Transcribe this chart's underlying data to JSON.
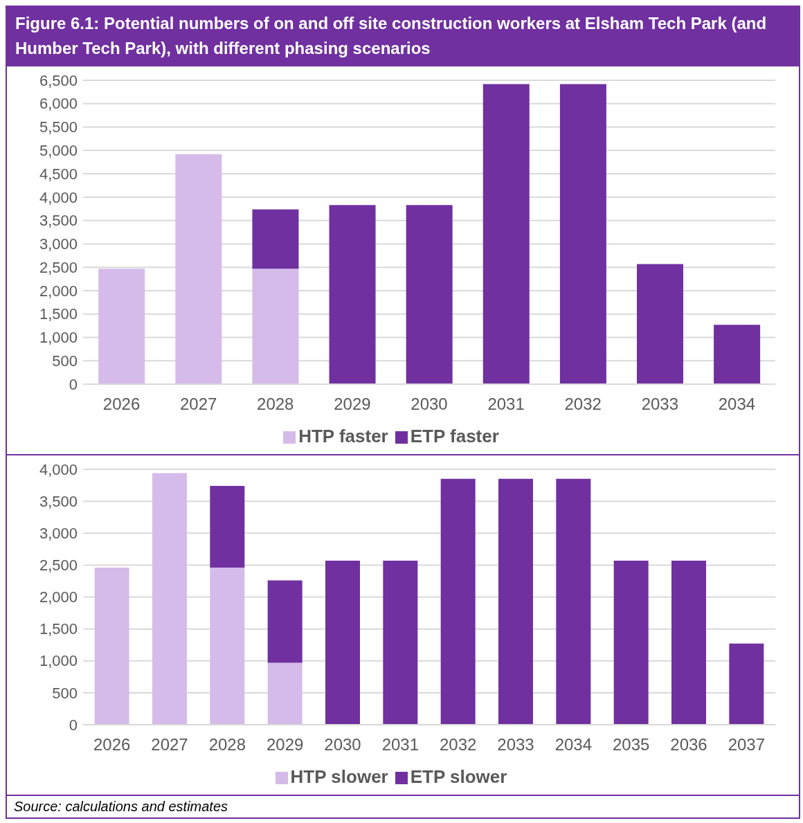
{
  "chart_data": [
    {
      "type": "bar",
      "title": "Figure 6.1: Potential numbers of on and off site construction workers at Elsham Tech Park (and Humber Tech Park), with different phasing scenarios",
      "categories": [
        "2026",
        "2027",
        "2028",
        "2029",
        "2030",
        "2031",
        "2032",
        "2033",
        "2034"
      ],
      "stacked": true,
      "ylim": [
        0,
        6500
      ],
      "yticks": [
        {
          "value": 0,
          "label": "0"
        },
        {
          "value": 500,
          "label": "500"
        },
        {
          "value": 1000,
          "label": "1,000"
        },
        {
          "value": 1500,
          "label": "1,500"
        },
        {
          "value": 2000,
          "label": "2,000"
        },
        {
          "value": 2500,
          "label": "2,500"
        },
        {
          "value": 3000,
          "label": "3,000"
        },
        {
          "value": 3500,
          "label": "3,500"
        },
        {
          "value": 4000,
          "label": "4,000"
        },
        {
          "value": 4500,
          "label": "4,500"
        },
        {
          "value": 5000,
          "label": "5,000"
        },
        {
          "value": 5500,
          "label": "5,500"
        },
        {
          "value": 6000,
          "label": "6,000"
        },
        {
          "value": 6500,
          "label": "6,500"
        }
      ],
      "grid": "y",
      "legend": "bottom",
      "series": [
        {
          "name": "HTP faster",
          "color": "#d5bbea",
          "values": [
            2470,
            4920,
            2470,
            null,
            null,
            null,
            null,
            null,
            null
          ]
        },
        {
          "name": "ETP faster",
          "color": "#7030a0",
          "values": [
            null,
            null,
            1270,
            3830,
            3830,
            6420,
            6420,
            2570,
            1270
          ]
        }
      ]
    },
    {
      "type": "bar",
      "categories": [
        "2026",
        "2027",
        "2028",
        "2029",
        "2030",
        "2031",
        "2032",
        "2033",
        "2034",
        "2035",
        "2036",
        "2037"
      ],
      "stacked": true,
      "ylim": [
        0,
        4000
      ],
      "yticks": [
        {
          "value": 0,
          "label": "0"
        },
        {
          "value": 500,
          "label": "500"
        },
        {
          "value": 1000,
          "label": "1,000"
        },
        {
          "value": 1500,
          "label": "1,500"
        },
        {
          "value": 2000,
          "label": "2,000"
        },
        {
          "value": 2500,
          "label": "2,500"
        },
        {
          "value": 3000,
          "label": "3,000"
        },
        {
          "value": 3500,
          "label": "3,500"
        },
        {
          "value": 4000,
          "label": "4,000"
        }
      ],
      "grid": "y",
      "legend": "bottom",
      "annotations": [
        "Source: calculations and estimates"
      ],
      "series": [
        {
          "name": "HTP slower",
          "color": "#d5bbea",
          "values": [
            2460,
            3940,
            2460,
            970,
            null,
            null,
            null,
            null,
            null,
            null,
            null,
            null
          ]
        },
        {
          "name": "ETP slower",
          "color": "#7030a0",
          "values": [
            null,
            null,
            1280,
            1290,
            2570,
            2570,
            3850,
            3850,
            3850,
            2570,
            2570,
            1270
          ]
        }
      ]
    }
  ]
}
